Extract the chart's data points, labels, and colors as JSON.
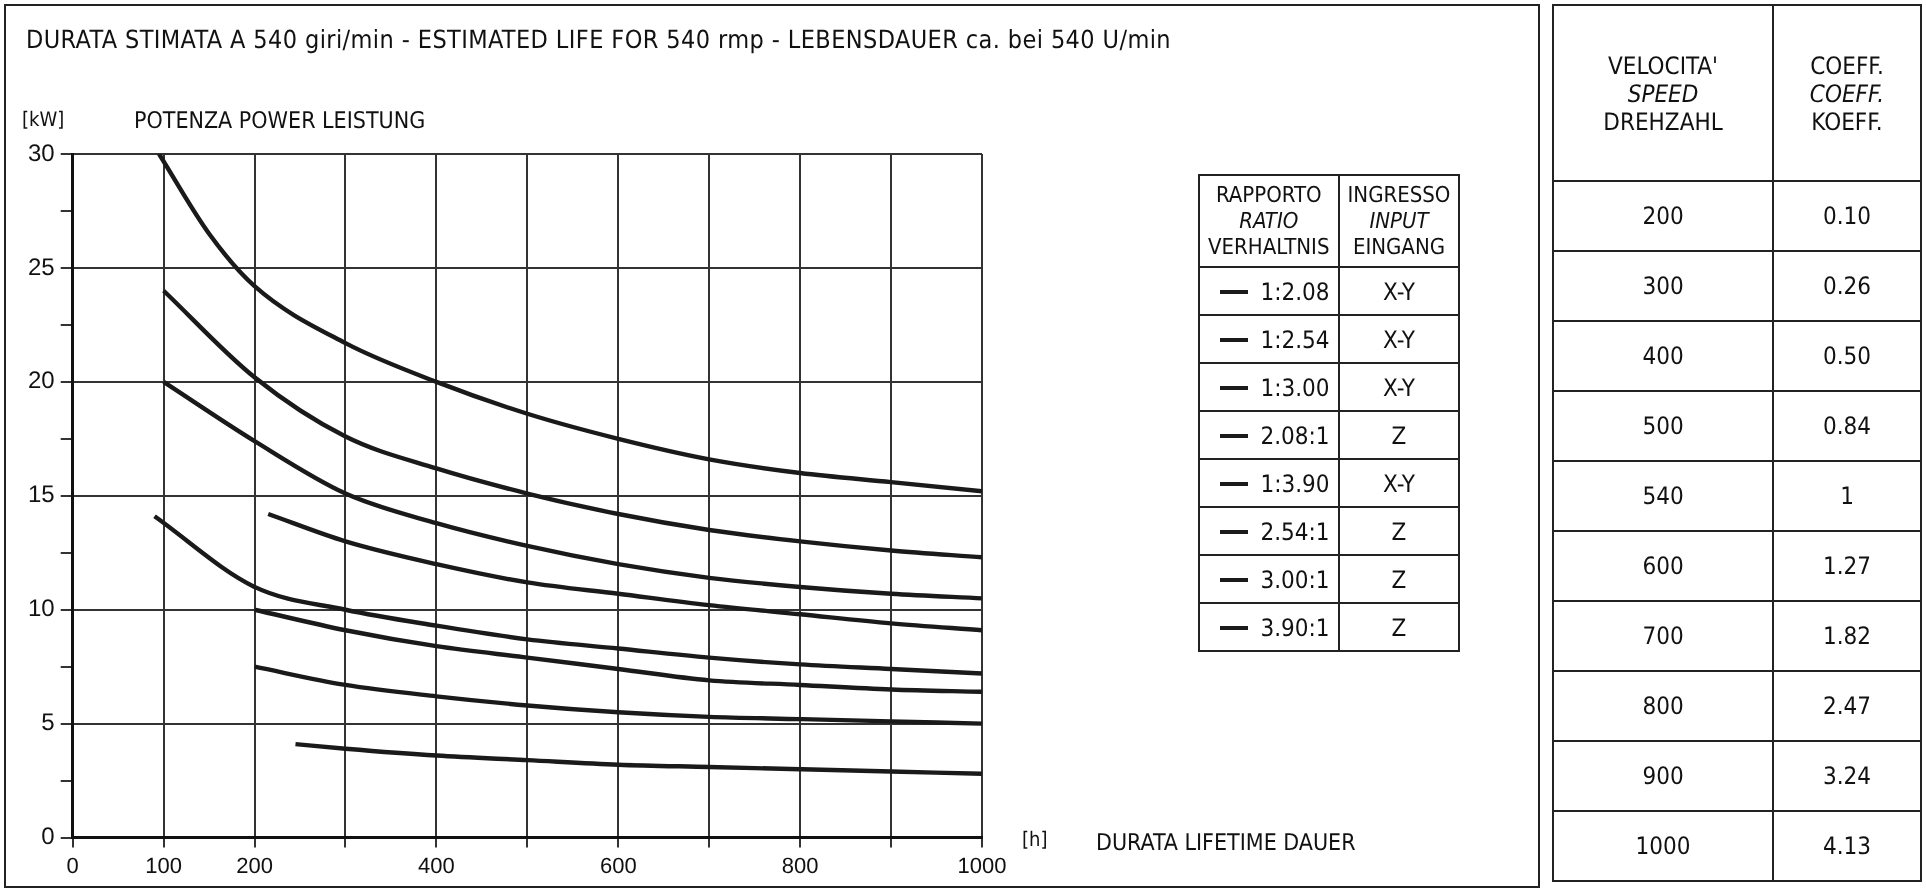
{
  "chart_data": [
    {
      "type": "line",
      "title": "DURATA STIMATA A 540 giri/min - ESTIMATED LIFE FOR 540 rmp - LEBENSDAUER ca. bei 540 U/min",
      "xlabel": "DURATA LIFETIME DAUER",
      "ylabel": "POTENZA POWER LEISTUNG",
      "legend_title": "RAPPORTO RATIO VERHALTNIS",
      "annotations": [
        "[kW]",
        "[h]",
        "INGRESSO INPUT EINGANG",
        "X-Y",
        "X-Y",
        "X-Y",
        "Z",
        "X-Y",
        "Z",
        "Z",
        "Z"
      ],
      "xlim": [
        0,
        1000
      ],
      "ylim": [
        0,
        30
      ],
      "xticks": [
        0,
        100,
        200,
        {
          "value": 300,
          "label": null
        },
        400,
        {
          "value": 500,
          "label": null
        },
        600,
        {
          "value": 700,
          "label": null
        },
        800,
        {
          "value": 900,
          "label": null
        },
        1000
      ],
      "yticks": [
        0,
        {
          "value": 2.5,
          "label": null
        },
        5,
        {
          "value": 7.5,
          "label": null
        },
        10,
        {
          "value": 12.5,
          "label": null
        },
        15,
        {
          "value": 17.5,
          "label": null
        },
        20,
        {
          "value": 22.5,
          "label": null
        },
        25,
        {
          "value": 27.5,
          "label": null
        },
        30
      ],
      "grid": true,
      "legend": "right",
      "marker": "none",
      "series": [
        {
          "name": "1:2.08",
          "color": "#1a1a1a",
          "x": [
            95,
            150,
            200,
            300,
            400,
            500,
            600,
            700,
            800,
            900,
            1000
          ],
          "values": [
            30,
            26.5,
            24.2,
            21.7,
            20.0,
            18.6,
            17.5,
            16.6,
            16.0,
            15.6,
            15.2
          ]
        },
        {
          "name": "1:2.54",
          "color": "#1a1a1a",
          "x": [
            100,
            200,
            300,
            400,
            500,
            600,
            700,
            800,
            900,
            1000
          ],
          "values": [
            24.0,
            20.2,
            17.6,
            16.2,
            15.1,
            14.2,
            13.5,
            13.0,
            12.6,
            12.3
          ]
        },
        {
          "name": "1:3.00",
          "color": "#1a1a1a",
          "x": [
            100,
            200,
            300,
            400,
            500,
            600,
            700,
            800,
            900,
            1000
          ],
          "values": [
            20.0,
            17.4,
            15.1,
            13.8,
            12.8,
            12.0,
            11.4,
            11.0,
            10.7,
            10.5
          ]
        },
        {
          "name": "2.08:1",
          "color": "#1a1a1a",
          "x": [
            215,
            300,
            400,
            500,
            600,
            700,
            800,
            900,
            1000
          ],
          "values": [
            14.2,
            13.0,
            12.0,
            11.2,
            10.7,
            10.2,
            9.8,
            9.4,
            9.1
          ]
        },
        {
          "name": "1:3.90",
          "color": "#1a1a1a",
          "x": [
            90,
            200,
            300,
            400,
            500,
            600,
            700,
            800,
            900,
            1000
          ],
          "values": [
            14.1,
            11.0,
            10.0,
            9.3,
            8.7,
            8.3,
            7.9,
            7.6,
            7.4,
            7.2
          ]
        },
        {
          "name": "2.54:1",
          "color": "#1a1a1a",
          "x": [
            200,
            300,
            400,
            500,
            600,
            700,
            800,
            900,
            1000
          ],
          "values": [
            10.0,
            9.1,
            8.4,
            7.9,
            7.4,
            6.9,
            6.7,
            6.5,
            6.4
          ]
        },
        {
          "name": "3.00:1",
          "color": "#1a1a1a",
          "x": [
            200,
            300,
            400,
            500,
            600,
            700,
            800,
            900,
            1000
          ],
          "values": [
            7.5,
            6.7,
            6.2,
            5.8,
            5.5,
            5.3,
            5.2,
            5.1,
            5.0
          ]
        },
        {
          "name": "3.90:1",
          "color": "#1a1a1a",
          "x": [
            245,
            300,
            400,
            500,
            600,
            700,
            800,
            900,
            1000
          ],
          "values": [
            4.1,
            3.9,
            3.6,
            3.4,
            3.2,
            3.1,
            3.0,
            2.9,
            2.8
          ]
        }
      ]
    },
    {
      "type": "other",
      "xlabel": "VELOCITA' SPEED DREHZAHL",
      "ylabel": "COEFF. COEFF. KOEFF.",
      "categories": [
        "200",
        "300",
        "400",
        "500",
        "540",
        "600",
        "700",
        "800",
        "900",
        "1000"
      ],
      "values": [
        0.1,
        0.26,
        0.5,
        0.84,
        1,
        1.27,
        1.82,
        2.47,
        3.24,
        4.13
      ],
      "value_labels": [
        "0.10",
        "0.26",
        "0.50",
        "0.84",
        "1",
        "1.27",
        "1.82",
        "2.47",
        "3.24",
        "4.13"
      ]
    }
  ]
}
